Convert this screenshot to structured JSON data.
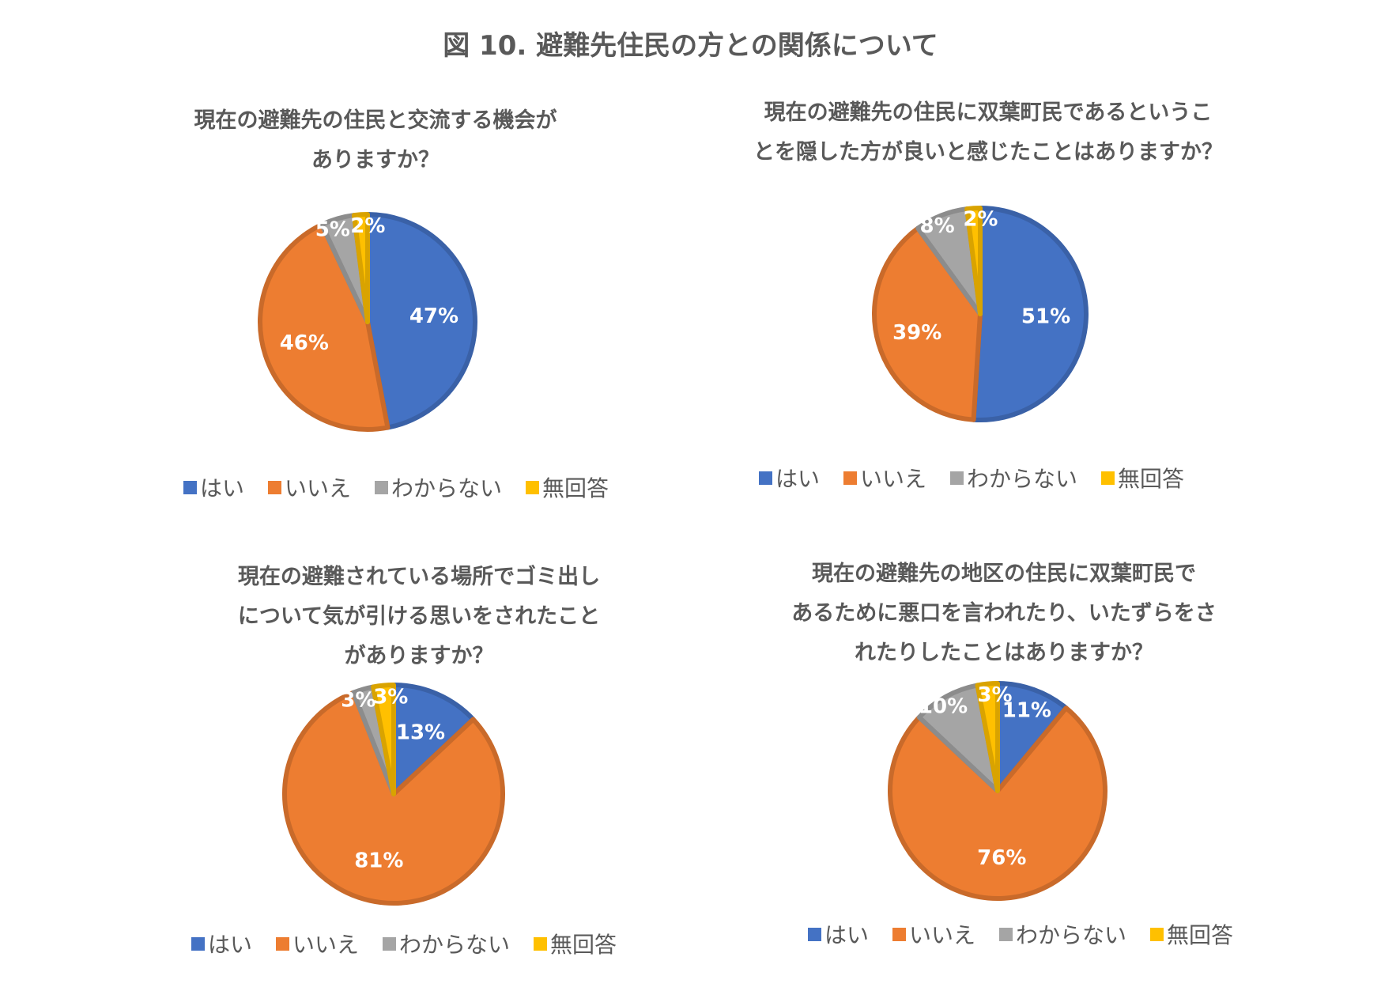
{
  "title": "図 10. 避難先住民の方との関係について",
  "legend": [
    "はい",
    "いいえ",
    "わからない",
    "無回答"
  ],
  "colors": [
    "#4472C4",
    "#ED7D31",
    "#A5A5A5",
    "#FFC000"
  ],
  "chart_data": [
    {
      "type": "pie",
      "title_lines": [
        "現在の避難先の住民と交流する機会が",
        "ありますか？"
      ],
      "categories": [
        "はい",
        "いいえ",
        "わからない",
        "無回答"
      ],
      "values": [
        47,
        46,
        5,
        2
      ],
      "labels": [
        "47%",
        "46%",
        "5%",
        "2%"
      ]
    },
    {
      "type": "pie",
      "title_lines": [
        "現在の避難先の住民に双葉町民であるというこ",
        "とを隠した方が良いと感じたことはありますか？"
      ],
      "categories": [
        "はい",
        "いいえ",
        "わからない",
        "無回答"
      ],
      "values": [
        51,
        39,
        8,
        2
      ],
      "labels": [
        "51%",
        "39%",
        "8%",
        "2%"
      ]
    },
    {
      "type": "pie",
      "title_lines": [
        "現在の避難されている場所でゴミ出し",
        "について気が引ける思いをされたこと",
        "がありますか？"
      ],
      "categories": [
        "はい",
        "いいえ",
        "わからない",
        "無回答"
      ],
      "values": [
        13,
        81,
        3,
        3
      ],
      "labels": [
        "13%",
        "81%",
        "3%",
        "3%"
      ]
    },
    {
      "type": "pie",
      "title_lines": [
        "現在の避難先の地区の住民に双葉町民で",
        "あるために悪口を言われたり、いたずらをさ",
        "れたりしたことはありますか？"
      ],
      "categories": [
        "はい",
        "いいえ",
        "わからない",
        "無回答"
      ],
      "values": [
        11,
        76,
        10,
        3
      ],
      "labels": [
        "11%",
        "76%",
        "10%",
        "3%"
      ]
    }
  ]
}
